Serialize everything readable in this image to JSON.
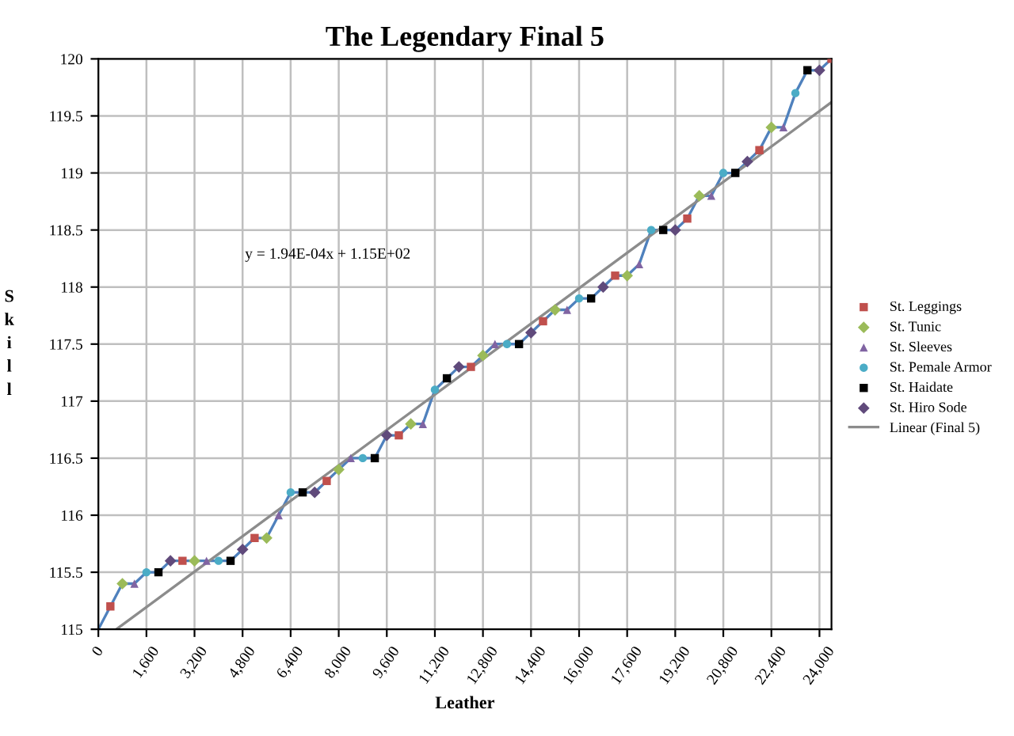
{
  "chart_data": {
    "type": "scatter",
    "title": "The Legendary Final 5",
    "xlabel": "Leather",
    "ylabel": "Skill",
    "annotations": [
      "y = 1.94E-04x + 1.15E+02"
    ],
    "xlim": [
      0,
      24400
    ],
    "ylim": [
      115,
      120
    ],
    "xticks": [
      0,
      {
        "value": 1600,
        "label": "1,600"
      },
      {
        "value": 3200,
        "label": "3,200"
      },
      {
        "value": 4800,
        "label": "4,800"
      },
      {
        "value": 6400,
        "label": "6,400"
      },
      {
        "value": 8000,
        "label": "8,000"
      },
      {
        "value": 9600,
        "label": "9,600"
      },
      {
        "value": 11200,
        "label": "11,200"
      },
      {
        "value": 12800,
        "label": "12,800"
      },
      {
        "value": 14400,
        "label": "14,400"
      },
      {
        "value": 16000,
        "label": "16,000"
      },
      {
        "value": 17600,
        "label": "17,600"
      },
      {
        "value": 19200,
        "label": "19,200"
      },
      {
        "value": 20800,
        "label": "20,800"
      },
      {
        "value": 22400,
        "label": "22,400"
      },
      {
        "value": 24000,
        "label": "24,000"
      }
    ],
    "yticks": [
      115,
      115.5,
      116,
      116.5,
      117,
      117.5,
      118,
      118.5,
      119,
      119.5,
      120
    ],
    "grid": true,
    "legend": "right",
    "series": [
      {
        "type": "line",
        "color": "#4f81bd",
        "marker": "none",
        "x": [
          0,
          400,
          800,
          1200,
          1600,
          2000,
          2400,
          2800,
          3200,
          3600,
          4000,
          4400,
          4800,
          5200,
          5600,
          6000,
          6400,
          6800,
          7200,
          7600,
          8000,
          8400,
          8800,
          9200,
          9600,
          10000,
          10400,
          10800,
          11200,
          11600,
          12000,
          12400,
          12800,
          13200,
          13600,
          14000,
          14400,
          14800,
          15200,
          15600,
          16000,
          16400,
          16800,
          17200,
          17600,
          18000,
          18400,
          18800,
          19200,
          19600,
          20000,
          20400,
          20800,
          21200,
          21600,
          22000,
          22400,
          22800,
          23200,
          23600,
          24000,
          24400
        ],
        "values": [
          115.0,
          115.2,
          115.4,
          115.4,
          115.5,
          115.5,
          115.6,
          115.6,
          115.6,
          115.6,
          115.6,
          115.6,
          115.7,
          115.8,
          115.8,
          116.0,
          116.2,
          116.2,
          116.2,
          116.3,
          116.4,
          116.5,
          116.5,
          116.5,
          116.7,
          116.7,
          116.8,
          116.8,
          117.1,
          117.2,
          117.3,
          117.3,
          117.4,
          117.5,
          117.5,
          117.5,
          117.6,
          117.7,
          117.8,
          117.8,
          117.9,
          117.9,
          118.0,
          118.1,
          118.1,
          118.2,
          118.5,
          118.5,
          118.5,
          118.6,
          118.8,
          118.8,
          119.0,
          119.0,
          119.1,
          119.2,
          119.4,
          119.4,
          119.7,
          119.9,
          119.9,
          120.0
        ]
      },
      {
        "name": "St. Leggings",
        "color": "#c0504d",
        "marker": "square",
        "x": [
          400,
          2800,
          5200,
          7600,
          10000,
          12400,
          14800,
          17200,
          19600,
          22000,
          24400
        ],
        "values": [
          115.2,
          115.6,
          115.8,
          116.3,
          116.7,
          117.3,
          117.7,
          118.1,
          118.6,
          119.2,
          120.0
        ]
      },
      {
        "name": "St. Tunic",
        "color": "#9bbb59",
        "marker": "diamond",
        "x": [
          800,
          3200,
          5600,
          8000,
          10400,
          12800,
          15200,
          17600,
          20000,
          22400
        ],
        "values": [
          115.4,
          115.6,
          115.8,
          116.4,
          116.8,
          117.4,
          117.8,
          118.1,
          118.8,
          119.4
        ]
      },
      {
        "name": "St. Sleeves",
        "color": "#8064a2",
        "marker": "triangle",
        "x": [
          1200,
          3600,
          6000,
          8400,
          10800,
          13200,
          15600,
          18000,
          20400,
          22800
        ],
        "values": [
          115.4,
          115.6,
          116.0,
          116.5,
          116.8,
          117.5,
          117.8,
          118.2,
          118.8,
          119.4
        ]
      },
      {
        "name": "St. Pemale Armor",
        "color": "#4bacc6",
        "marker": "circle",
        "x": [
          1600,
          4000,
          6400,
          8800,
          11200,
          13600,
          16000,
          18400,
          20800,
          23200
        ],
        "values": [
          115.5,
          115.6,
          116.2,
          116.5,
          117.1,
          117.5,
          117.9,
          118.5,
          119.0,
          119.7
        ]
      },
      {
        "name": "St. Haidate",
        "color": "#000000",
        "marker": "square",
        "x": [
          2000,
          4400,
          6800,
          9200,
          11600,
          14000,
          16400,
          18800,
          21200,
          23600
        ],
        "values": [
          115.5,
          115.6,
          116.2,
          116.5,
          117.2,
          117.5,
          117.9,
          118.5,
          119.0,
          119.9
        ]
      },
      {
        "name": "St. Hiro Sode",
        "color": "#604a7b",
        "marker": "diamond",
        "x": [
          2400,
          4800,
          7200,
          9600,
          12000,
          14400,
          16800,
          19200,
          21600,
          24000
        ],
        "values": [
          115.6,
          115.7,
          116.2,
          116.7,
          117.3,
          117.6,
          118.0,
          118.5,
          119.1,
          119.9
        ]
      },
      {
        "name": "Linear (Final 5)",
        "type": "line",
        "color": "#8c8c8c",
        "marker": "none",
        "x": [
          600,
          24400
        ],
        "values": [
          115.0,
          119.62
        ]
      }
    ]
  }
}
